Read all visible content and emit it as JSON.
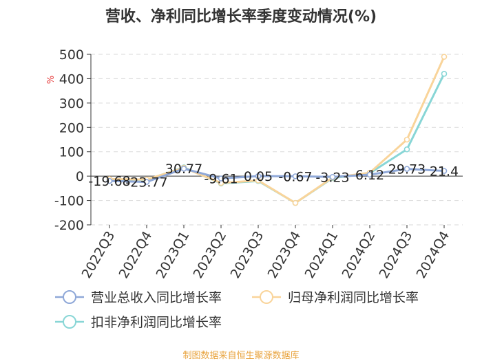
{
  "title": "营收、净利同比增长率季度变动情况(%)",
  "source": "制图数据来自恒生聚源数据库",
  "chart_data": {
    "type": "line",
    "title": "营收、净利同比增长率季度变动情况(%)",
    "ylabel": "%",
    "ylim": [
      -200,
      500
    ],
    "yticks": [
      -200,
      -100,
      0,
      100,
      200,
      300,
      400,
      500
    ],
    "grid": true,
    "legend_position": "bottom",
    "categories": [
      "2022Q3",
      "2022Q4",
      "2023Q1",
      "2023Q2",
      "2023Q3",
      "2023Q4",
      "2024Q1",
      "2024Q2",
      "2024Q3",
      "2024Q4"
    ],
    "series": [
      {
        "name": "营业总收入同比增长率",
        "color": "#8fa8d8",
        "values": [
          -19.68,
          -23.77,
          30.77,
          -9.61,
          0.05,
          -0.67,
          -3.23,
          6.12,
          29.73,
          21.4
        ],
        "labels": [
          "-19.68",
          "-23.77",
          "30.77",
          "-9.61",
          "0.05",
          "-0.67",
          "-3.23",
          "6.12",
          "29.73",
          "21.4"
        ]
      },
      {
        "name": "归母净利润同比增长率",
        "color": "#f9d49a",
        "values": [
          -12,
          -14,
          34,
          -28,
          -18,
          -110,
          -6,
          14,
          150,
          490
        ]
      },
      {
        "name": "扣非净利润同比增长率",
        "color": "#88d6d6",
        "values": [
          -13,
          -15,
          36,
          -30,
          -20,
          -110,
          -8,
          12,
          110,
          420
        ]
      }
    ]
  }
}
